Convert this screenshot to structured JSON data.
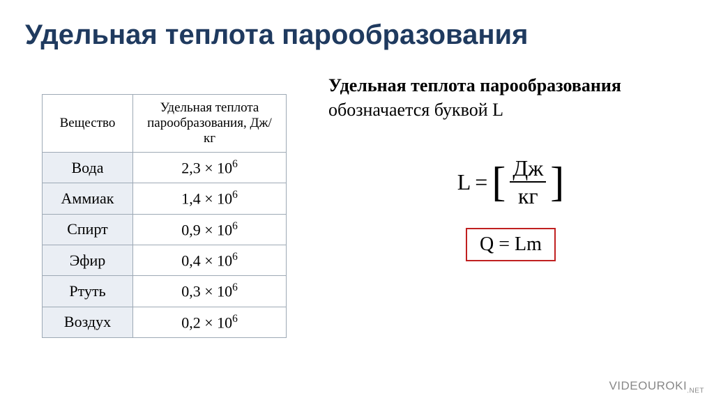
{
  "title": "Удельная теплота парообразования",
  "table": {
    "headers": [
      "Вещество",
      "Удельная теплота парообразования, Дж/кг"
    ],
    "rows": [
      {
        "substance": "Вода",
        "mantissa": "2,3",
        "exp": "6"
      },
      {
        "substance": "Аммиак",
        "mantissa": "1,4",
        "exp": "6"
      },
      {
        "substance": "Спирт",
        "mantissa": "0,9",
        "exp": "6"
      },
      {
        "substance": "Эфир",
        "mantissa": "0,4",
        "exp": "6"
      },
      {
        "substance": "Ртуть",
        "mantissa": "0,3",
        "exp": "6"
      },
      {
        "substance": "Воздух",
        "mantissa": "0,2",
        "exp": "6"
      }
    ]
  },
  "subtitle": {
    "bold": "Удельная теплота парообразования",
    "rest": "обозначается буквой L"
  },
  "formula_unit": {
    "lhs": "L",
    "eq": "=",
    "num": "Дж",
    "den": "кг"
  },
  "formula_box": "Q = Lm",
  "watermark": {
    "main": "VIDEOUROKI",
    "suffix": ".NET"
  },
  "colors": {
    "title": "#1f3a5f",
    "table_border": "#9da9b5",
    "table_alt_bg": "#eaeef4",
    "box_border": "#c02020",
    "bg": "#ffffff",
    "text": "#000000",
    "watermark": "#888888"
  }
}
